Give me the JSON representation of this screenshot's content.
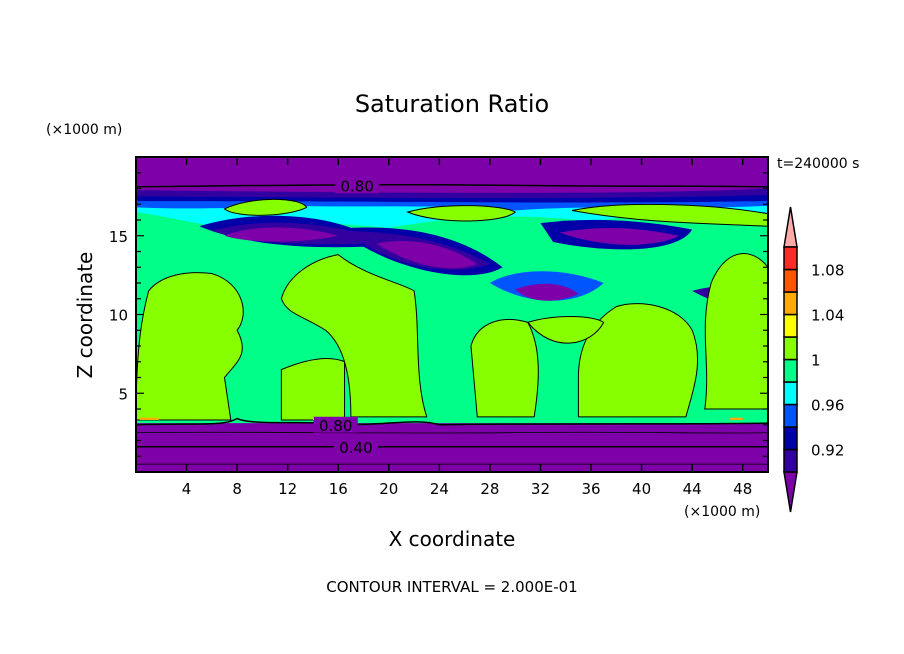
{
  "chart_data": {
    "type": "heatmap",
    "subtype": "filled-contour",
    "title": "Saturation Ratio",
    "xlabel": "X coordinate",
    "ylabel": "Z coordinate",
    "x_unit": "(×1000 m)",
    "y_unit": "(×1000 m)",
    "time_label": "t=240000 s",
    "footer": "CONTOUR INTERVAL = 2.000E-01",
    "xlim": [
      0,
      50
    ],
    "ylim": [
      0,
      20
    ],
    "xticks": [
      4,
      8,
      12,
      16,
      20,
      24,
      28,
      32,
      36,
      40,
      44,
      48
    ],
    "yticks": [
      5,
      10,
      15
    ],
    "contour_labels": [
      {
        "text": "0.80",
        "x": 17.5,
        "z": 18.2
      },
      {
        "text": "0.80",
        "x": 15.8,
        "z": 3.0
      },
      {
        "text": "0.40",
        "x": 17.4,
        "z": 1.6
      }
    ],
    "colorbar": {
      "levels": [
        0.9,
        0.92,
        0.94,
        0.96,
        0.98,
        1.0,
        1.02,
        1.04,
        1.06,
        1.08,
        1.1
      ],
      "tick_labels": [
        "0.92",
        "0.96",
        "1",
        "1.04",
        "1.08"
      ],
      "tick_values": [
        0.92,
        0.96,
        1.0,
        1.04,
        1.08
      ],
      "colors": [
        "#3300a0",
        "#0000a8",
        "#0055ff",
        "#00ffff",
        "#00ff88",
        "#88ff00",
        "#ffff00",
        "#ffaa00",
        "#ff5500",
        "#ff2a2a"
      ],
      "under_color": "#7d00a8",
      "over_color": "#ffaaaa"
    },
    "field_description_bands": [
      {
        "z": [
          0,
          3.1
        ],
        "level": "under"
      },
      {
        "z": [
          3.1,
          16
        ],
        "level": "0.98-1.00"
      },
      {
        "z": [
          16,
          17.6
        ],
        "level": "0.92-0.96"
      },
      {
        "z": [
          17.6,
          20
        ],
        "level": "under"
      }
    ]
  }
}
